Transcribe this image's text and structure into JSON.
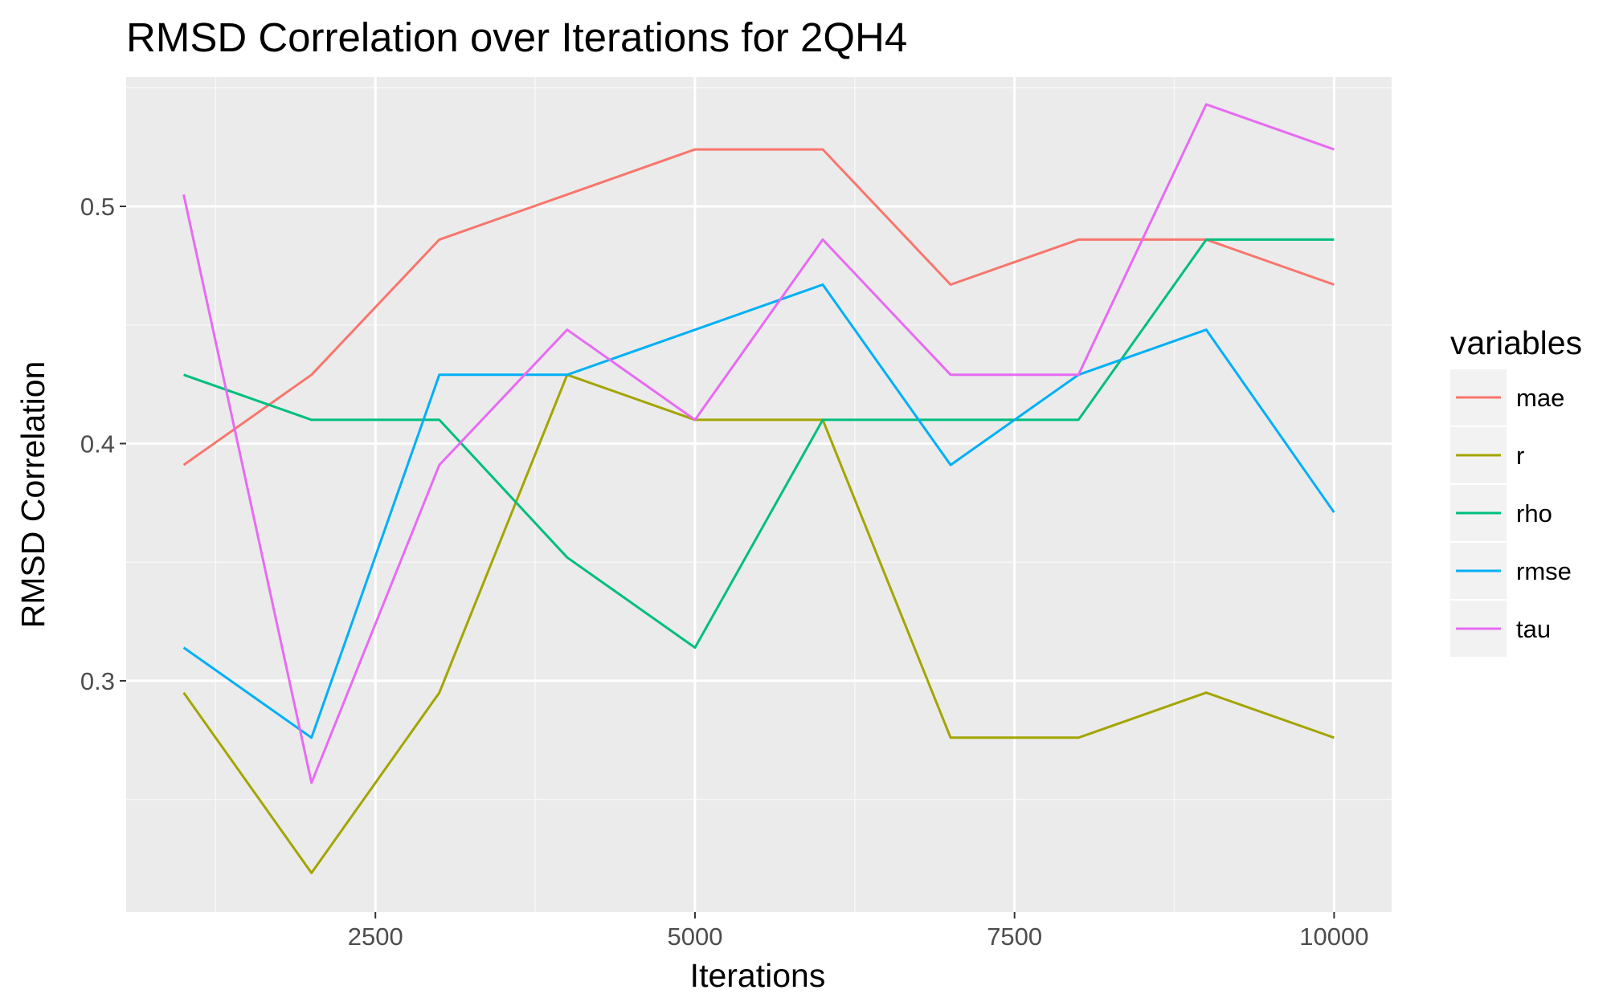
{
  "chart_data": {
    "type": "line",
    "title": "RMSD Correlation over Iterations for 2QH4",
    "xlabel": "Iterations",
    "ylabel": "RMSD Correlation",
    "x": [
      1000,
      2000,
      3000,
      4000,
      5000,
      6000,
      7000,
      8000,
      9000,
      10000
    ],
    "xlim": [
      550,
      10450
    ],
    "ylim": [
      0.2025,
      0.5545
    ],
    "xticks": [
      2500,
      5000,
      7500,
      10000
    ],
    "xtick_labels": [
      "2500",
      "5000",
      "7500",
      "10000"
    ],
    "yticks": [
      0.3,
      0.4,
      0.5
    ],
    "ytick_labels": [
      "0.3",
      "0.4",
      "0.5"
    ],
    "grid": true,
    "background": "#ebebeb",
    "legend": {
      "title": "variables",
      "position": "right"
    },
    "series": [
      {
        "name": "mae",
        "color": "#f8766d",
        "values": [
          0.391,
          0.429,
          0.486,
          0.505,
          0.524,
          0.524,
          0.467,
          0.486,
          0.486,
          0.467
        ]
      },
      {
        "name": "r",
        "color": "#a3a500",
        "values": [
          0.295,
          0.219,
          0.295,
          0.429,
          0.41,
          0.41,
          0.276,
          0.276,
          0.295,
          0.276
        ]
      },
      {
        "name": "rho",
        "color": "#00bf7d",
        "values": [
          0.429,
          0.41,
          0.41,
          0.352,
          0.314,
          0.41,
          0.41,
          0.41,
          0.486,
          0.486
        ]
      },
      {
        "name": "rmse",
        "color": "#00b0f6",
        "values": [
          0.314,
          0.276,
          0.429,
          0.429,
          0.448,
          0.467,
          0.391,
          0.429,
          0.448,
          0.371
        ]
      },
      {
        "name": "tau",
        "color": "#e76bf3",
        "values": [
          0.505,
          0.257,
          0.391,
          0.448,
          0.41,
          0.486,
          0.429,
          0.429,
          0.543,
          0.524
        ]
      }
    ]
  }
}
